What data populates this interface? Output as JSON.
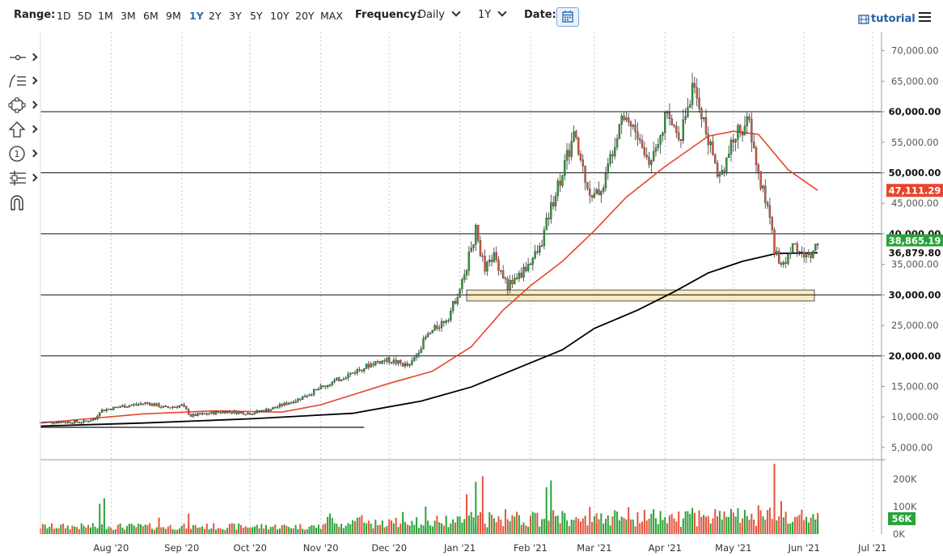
{
  "toolbar": {
    "range_label": "Range:",
    "ranges": [
      "1D",
      "5D",
      "1M",
      "3M",
      "6M",
      "9M",
      "1Y",
      "2Y",
      "3Y",
      "5Y",
      "10Y",
      "20Y",
      "MAX"
    ],
    "active_range": "1Y",
    "frequency_label": "Frequency:",
    "frequency_value": "Daily",
    "period_value": "1Y",
    "date_label": "Date:",
    "tutorial_label": "tutorial"
  },
  "drawing_tools": [
    "line-tool-icon",
    "fib-tool-icon",
    "shape-tool-icon",
    "arrow-tool-icon",
    "annotation-tool-icon",
    "measure-tool-icon",
    "magnet-icon"
  ],
  "chart_data": {
    "type": "candlestick",
    "price_axis": {
      "ylim": [
        3000,
        73000
      ],
      "ticks": [
        "70,000.00",
        "65,000.00",
        "60,000.00",
        "55,000.00",
        "50,000.00",
        "45,000.00",
        "40,000.00",
        "35,000.00",
        "30,000.00",
        "25,000.00",
        "20,000.00",
        "15,000.00",
        "10,000.00",
        "5,000.00"
      ],
      "tick_values": [
        70000,
        65000,
        60000,
        55000,
        50000,
        45000,
        40000,
        35000,
        30000,
        25000,
        20000,
        15000,
        10000,
        5000
      ]
    },
    "x_axis": {
      "labels": [
        "Aug '20",
        "Sep '20",
        "Oct '20",
        "Nov '20",
        "Dec '20",
        "Jan '21",
        "Feb '21",
        "Mar '21",
        "Apr '21",
        "May '21",
        "Jun '21",
        "Jul '21"
      ],
      "label_days": [
        31,
        62,
        92,
        123,
        153,
        184,
        215,
        243,
        274,
        304,
        335,
        365
      ],
      "start": "2020-07-01",
      "end": "2021-07-05"
    },
    "horizontal_lines": [
      60000,
      50000,
      40000,
      30000,
      20000
    ],
    "support_zone": {
      "from": 29000,
      "to": 30800,
      "start": "2021-01-04",
      "end": "2021-06-30"
    },
    "trend_line": {
      "start": "2020-07-01",
      "end": "2020-11-20",
      "value": 8300
    },
    "price_labels": [
      {
        "text": "60,000.00",
        "value": 60000,
        "style": "black"
      },
      {
        "text": "50,000.00",
        "value": 50000,
        "style": "black"
      },
      {
        "text": "47,111.29",
        "value": 47111.29,
        "style": "red"
      },
      {
        "text": "40,000.00",
        "value": 40000,
        "style": "black"
      },
      {
        "text": "38,865.19",
        "value": 38865.19,
        "style": "green"
      },
      {
        "text": "36,879.80",
        "value": 36879.8,
        "style": "black"
      },
      {
        "text": "30,000.00",
        "value": 30000,
        "style": "black"
      },
      {
        "text": "20,000.00",
        "value": 20000,
        "style": "black"
      }
    ],
    "closes": [
      {
        "date": "2020-07-01",
        "close": 9150
      },
      {
        "date": "2020-07-20",
        "close": 9200
      },
      {
        "date": "2020-07-25",
        "close": 9700
      },
      {
        "date": "2020-07-27",
        "close": 11000
      },
      {
        "date": "2020-08-05",
        "close": 11700
      },
      {
        "date": "2020-08-17",
        "close": 12300
      },
      {
        "date": "2020-08-25",
        "close": 11500
      },
      {
        "date": "2020-09-01",
        "close": 11900
      },
      {
        "date": "2020-09-05",
        "close": 10200
      },
      {
        "date": "2020-09-20",
        "close": 10900
      },
      {
        "date": "2020-10-01",
        "close": 10600
      },
      {
        "date": "2020-10-10",
        "close": 11300
      },
      {
        "date": "2020-10-22",
        "close": 12900
      },
      {
        "date": "2020-11-05",
        "close": 15500
      },
      {
        "date": "2020-11-18",
        "close": 17800
      },
      {
        "date": "2020-11-25",
        "close": 19000
      },
      {
        "date": "2020-12-01",
        "close": 19300
      },
      {
        "date": "2020-12-10",
        "close": 18300
      },
      {
        "date": "2020-12-17",
        "close": 23000
      },
      {
        "date": "2020-12-27",
        "close": 26500
      },
      {
        "date": "2021-01-02",
        "close": 32000
      },
      {
        "date": "2021-01-08",
        "close": 40500
      },
      {
        "date": "2021-01-12",
        "close": 34000
      },
      {
        "date": "2021-01-16",
        "close": 36500
      },
      {
        "date": "2021-01-22",
        "close": 31500
      },
      {
        "date": "2021-01-28",
        "close": 33500
      },
      {
        "date": "2021-02-05",
        "close": 37500
      },
      {
        "date": "2021-02-10",
        "close": 44500
      },
      {
        "date": "2021-02-20",
        "close": 56000
      },
      {
        "date": "2021-02-28",
        "close": 45500
      },
      {
        "date": "2021-03-05",
        "close": 48000
      },
      {
        "date": "2021-03-13",
        "close": 60000
      },
      {
        "date": "2021-03-18",
        "close": 57500
      },
      {
        "date": "2021-03-25",
        "close": 51500
      },
      {
        "date": "2021-04-01",
        "close": 59000
      },
      {
        "date": "2021-04-08",
        "close": 56500
      },
      {
        "date": "2021-04-13",
        "close": 63500
      },
      {
        "date": "2021-04-16",
        "close": 61500
      },
      {
        "date": "2021-04-20",
        "close": 55000
      },
      {
        "date": "2021-04-25",
        "close": 49500
      },
      {
        "date": "2021-05-03",
        "close": 57000
      },
      {
        "date": "2021-05-08",
        "close": 58000
      },
      {
        "date": "2021-05-12",
        "close": 49500
      },
      {
        "date": "2021-05-17",
        "close": 43000
      },
      {
        "date": "2021-05-19",
        "close": 37500
      },
      {
        "date": "2021-05-23",
        "close": 34500
      },
      {
        "date": "2021-05-27",
        "close": 38500
      },
      {
        "date": "2021-05-31",
        "close": 36500
      },
      {
        "date": "2021-06-04",
        "close": 36500
      },
      {
        "date": "2021-06-07",
        "close": 38865
      }
    ],
    "ma_red": [
      {
        "date": "2020-07-01",
        "v": 9000
      },
      {
        "date": "2020-08-15",
        "v": 10500
      },
      {
        "date": "2020-09-15",
        "v": 11000
      },
      {
        "date": "2020-10-15",
        "v": 10800
      },
      {
        "date": "2020-11-01",
        "v": 12000
      },
      {
        "date": "2020-12-01",
        "v": 15500
      },
      {
        "date": "2020-12-20",
        "v": 17500
      },
      {
        "date": "2021-01-06",
        "v": 21500
      },
      {
        "date": "2021-01-20",
        "v": 27500
      },
      {
        "date": "2021-02-01",
        "v": 31500
      },
      {
        "date": "2021-02-15",
        "v": 35500
      },
      {
        "date": "2021-03-01",
        "v": 40500
      },
      {
        "date": "2021-03-15",
        "v": 46000
      },
      {
        "date": "2021-04-01",
        "v": 51000
      },
      {
        "date": "2021-04-20",
        "v": 56000
      },
      {
        "date": "2021-05-01",
        "v": 56800
      },
      {
        "date": "2021-05-12",
        "v": 56300
      },
      {
        "date": "2021-05-25",
        "v": 50500
      },
      {
        "date": "2021-06-07",
        "v": 47111
      }
    ],
    "ma_black": [
      {
        "date": "2020-07-01",
        "v": 8500
      },
      {
        "date": "2020-08-15",
        "v": 9000
      },
      {
        "date": "2020-10-01",
        "v": 9700
      },
      {
        "date": "2020-11-15",
        "v": 10600
      },
      {
        "date": "2020-12-15",
        "v": 12600
      },
      {
        "date": "2021-01-06",
        "v": 14900
      },
      {
        "date": "2021-01-25",
        "v": 17800
      },
      {
        "date": "2021-02-15",
        "v": 21000
      },
      {
        "date": "2021-03-01",
        "v": 24500
      },
      {
        "date": "2021-03-20",
        "v": 27500
      },
      {
        "date": "2021-04-05",
        "v": 30500
      },
      {
        "date": "2021-04-20",
        "v": 33600
      },
      {
        "date": "2021-05-05",
        "v": 35500
      },
      {
        "date": "2021-05-20",
        "v": 36800
      },
      {
        "date": "2021-06-07",
        "v": 36880
      }
    ],
    "volume_axis": {
      "ticks": [
        "200K",
        "100K",
        "0K"
      ],
      "tick_values": [
        200000,
        100000,
        0
      ],
      "ylim": [
        0,
        270000
      ]
    },
    "volume_label": "56K",
    "volume": [
      {
        "date": "2020-07-27",
        "v": 110000,
        "dir": "up"
      },
      {
        "date": "2020-07-29",
        "v": 130000,
        "dir": "up"
      },
      {
        "date": "2020-08-22",
        "v": 60000,
        "dir": "down"
      },
      {
        "date": "2020-09-04",
        "v": 75000,
        "dir": "down"
      },
      {
        "date": "2020-11-05",
        "v": 75000,
        "dir": "up"
      },
      {
        "date": "2020-12-07",
        "v": 80000,
        "dir": "up"
      },
      {
        "date": "2020-12-17",
        "v": 100000,
        "dir": "up"
      },
      {
        "date": "2021-01-04",
        "v": 145000,
        "dir": "down"
      },
      {
        "date": "2021-01-08",
        "v": 190000,
        "dir": "up"
      },
      {
        "date": "2021-01-11",
        "v": 210000,
        "dir": "down"
      },
      {
        "date": "2021-02-08",
        "v": 170000,
        "dir": "up"
      },
      {
        "date": "2021-02-10",
        "v": 195000,
        "dir": "up"
      },
      {
        "date": "2021-03-02",
        "v": 75000,
        "dir": "down"
      },
      {
        "date": "2021-04-13",
        "v": 95000,
        "dir": "up"
      },
      {
        "date": "2021-04-18",
        "v": 60000,
        "dir": "down"
      },
      {
        "date": "2021-05-12",
        "v": 105000,
        "dir": "down"
      },
      {
        "date": "2021-05-19",
        "v": 255000,
        "dir": "down"
      },
      {
        "date": "2021-05-22",
        "v": 120000,
        "dir": "down"
      },
      {
        "date": "2021-06-07",
        "v": 56000,
        "dir": "up"
      }
    ]
  },
  "colors": {
    "up": "#2aa23a",
    "down": "#e2553f",
    "ma_fast": "#e8442d",
    "ma_slow": "#000000",
    "zone": "#f8e9c0",
    "accent": "#2a6fb5"
  }
}
